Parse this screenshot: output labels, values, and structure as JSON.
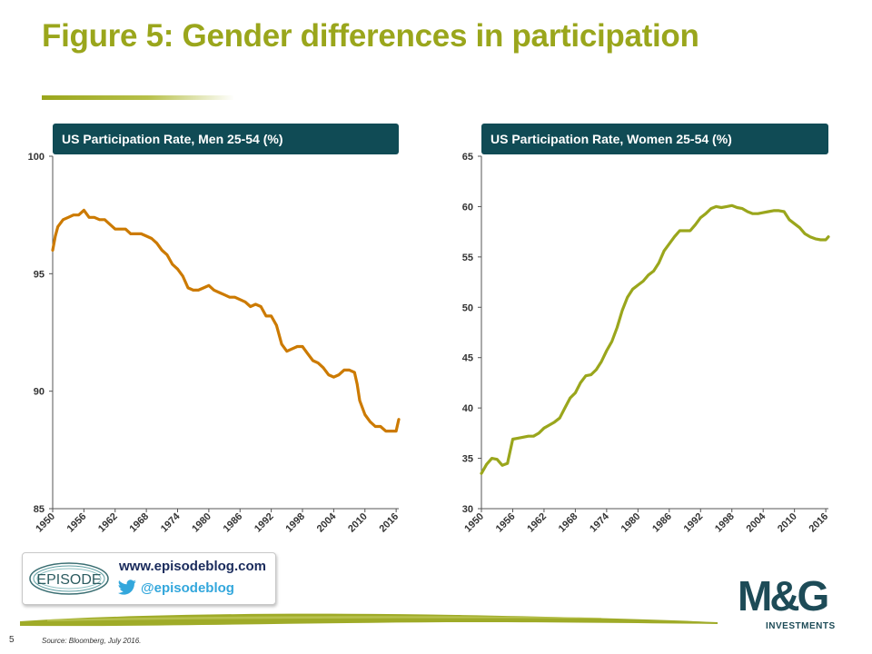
{
  "title": "Figure 5: Gender differences in participation",
  "colors": {
    "title": "#9aa61c",
    "panel_header_bg": "#104b55",
    "men_line": "#cc7a00",
    "women_line": "#9aa61c",
    "mg_navy": "#1d4b57"
  },
  "footer": {
    "page_number": "5",
    "source": "Source: Bloomberg,  July 2016.",
    "blog_url": "www.episodeblog.com",
    "twitter_handle": "@episodeblog",
    "episode_logo_text": "EPISODE",
    "brand": "M&G",
    "brand_sub": "INVESTMENTS",
    "icons": [
      "twitter-bird-icon"
    ]
  },
  "chart_data": [
    {
      "type": "line",
      "title": "US Participation Rate, Men 25-54 (%)",
      "xlabel": "",
      "ylabel": "",
      "x_ticks": [
        "1950",
        "1956",
        "1962",
        "1968",
        "1974",
        "1980",
        "1986",
        "1992",
        "1998",
        "2004",
        "2010",
        "2016"
      ],
      "y_ticks": [
        "100",
        "95",
        "90",
        "85"
      ],
      "xlim": [
        1950,
        2016.5
      ],
      "ylim": [
        85,
        100
      ],
      "grid": false,
      "series": [
        {
          "color": "#cc7a00",
          "x": [
            1950,
            1950.5,
            1951,
            1952,
            1953,
            1954,
            1955,
            1956,
            1957,
            1958,
            1959,
            1960,
            1961,
            1962,
            1963,
            1964,
            1965,
            1966,
            1967,
            1968,
            1969,
            1970,
            1971,
            1972,
            1973,
            1974,
            1975,
            1976,
            1977,
            1978,
            1979,
            1980,
            1981,
            1982,
            1983,
            1984,
            1985,
            1986,
            1987,
            1988,
            1989,
            1990,
            1991,
            1992,
            1993,
            1994,
            1995,
            1996,
            1997,
            1998,
            1999,
            2000,
            2001,
            2002,
            2003,
            2004,
            2005,
            2006,
            2007,
            2008,
            2008.5,
            2009,
            2010,
            2011,
            2012,
            2013,
            2014,
            2015,
            2016,
            2016.5
          ],
          "values": [
            96.0,
            96.6,
            97.0,
            97.3,
            97.4,
            97.5,
            97.5,
            97.7,
            97.4,
            97.4,
            97.3,
            97.3,
            97.1,
            96.9,
            96.9,
            96.9,
            96.7,
            96.7,
            96.7,
            96.6,
            96.5,
            96.3,
            96.0,
            95.8,
            95.4,
            95.2,
            94.9,
            94.4,
            94.3,
            94.3,
            94.4,
            94.5,
            94.3,
            94.2,
            94.1,
            94.0,
            94.0,
            93.9,
            93.8,
            93.6,
            93.7,
            93.6,
            93.2,
            93.2,
            92.8,
            92.0,
            91.7,
            91.8,
            91.9,
            91.9,
            91.6,
            91.3,
            91.2,
            91.0,
            90.7,
            90.6,
            90.7,
            90.9,
            90.9,
            90.8,
            90.3,
            89.6,
            89.0,
            88.7,
            88.5,
            88.5,
            88.3,
            88.3,
            88.3,
            88.8
          ]
        }
      ]
    },
    {
      "type": "line",
      "title": "US Participation Rate, Women 25-54 (%)",
      "xlabel": "",
      "ylabel": "",
      "x_ticks": [
        "1950",
        "1956",
        "1962",
        "1968",
        "1974",
        "1980",
        "1986",
        "1992",
        "1998",
        "2004",
        "2010",
        "2016"
      ],
      "y_ticks": [
        "65",
        "60",
        "55",
        "50",
        "45",
        "40",
        "35",
        "30"
      ],
      "xlim": [
        1950,
        2016.5
      ],
      "ylim": [
        30,
        65
      ],
      "grid": false,
      "series": [
        {
          "color": "#9aa61c",
          "x": [
            1950,
            1951,
            1952,
            1953,
            1954,
            1955,
            1956,
            1957,
            1958,
            1959,
            1960,
            1961,
            1962,
            1963,
            1964,
            1965,
            1966,
            1967,
            1968,
            1969,
            1970,
            1971,
            1972,
            1973,
            1974,
            1975,
            1976,
            1977,
            1978,
            1979,
            1980,
            1981,
            1982,
            1983,
            1984,
            1985,
            1986,
            1987,
            1988,
            1989,
            1990,
            1991,
            1992,
            1993,
            1994,
            1995,
            1996,
            1997,
            1998,
            1999,
            2000,
            2001,
            2002,
            2003,
            2004,
            2005,
            2006,
            2007,
            2008,
            2009,
            2010,
            2011,
            2012,
            2013,
            2014,
            2015,
            2016,
            2016.5
          ],
          "values": [
            33.5,
            34.4,
            35.0,
            34.9,
            34.3,
            34.5,
            36.9,
            37.0,
            37.1,
            37.2,
            37.2,
            37.5,
            38.0,
            38.3,
            38.6,
            39.0,
            40.0,
            41.0,
            41.5,
            42.5,
            43.2,
            43.3,
            43.8,
            44.6,
            45.7,
            46.6,
            48.0,
            49.7,
            51.0,
            51.8,
            52.2,
            52.6,
            53.2,
            53.6,
            54.4,
            55.6,
            56.3,
            57.0,
            57.6,
            57.6,
            57.6,
            58.2,
            58.9,
            59.3,
            59.8,
            60.0,
            59.9,
            60.0,
            60.1,
            59.9,
            59.8,
            59.5,
            59.3,
            59.3,
            59.4,
            59.5,
            59.6,
            59.6,
            59.5,
            58.7,
            58.3,
            57.9,
            57.3,
            57.0,
            56.8,
            56.7,
            56.7,
            57.0
          ]
        }
      ]
    }
  ]
}
